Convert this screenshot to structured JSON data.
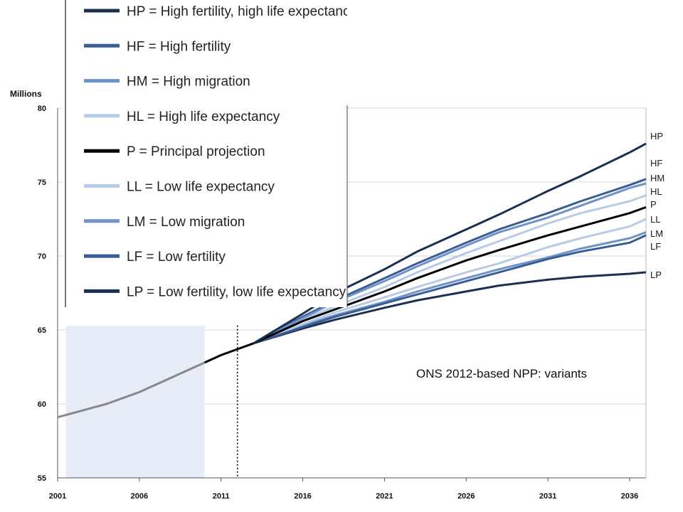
{
  "chart_data": {
    "type": "line",
    "title": "",
    "subtitle": "ONS 2012-based NPP: variants",
    "xlabel": "",
    "ylabel": "Millions",
    "xlim": [
      2001,
      2037
    ],
    "ylim": [
      55,
      80
    ],
    "x_ticks": [
      "2001",
      "2006",
      "2011",
      "2016",
      "2021",
      "2026",
      "2031",
      "2036"
    ],
    "y_ticks": [
      "55",
      "60",
      "65",
      "70",
      "75",
      "80"
    ],
    "grid": true,
    "shaded_region": [
      2001.5,
      2010
    ],
    "projection_start": 2012,
    "colors": {
      "historical_shaded": "#888888",
      "historical": "#000000",
      "principal": "#000000",
      "dark": "#1b2f50",
      "medium_dark": "#3a5c95",
      "medium": "#6f92c9",
      "light": "#b8cbe6",
      "shade_fill": "#e6edf6"
    },
    "historical": {
      "x": [
        2001,
        2002,
        2003,
        2004,
        2005,
        2006,
        2007,
        2008,
        2009,
        2010,
        2011,
        2012,
        2013
      ],
      "y": [
        59.1,
        59.4,
        59.7,
        60.0,
        60.4,
        60.8,
        61.3,
        61.8,
        62.3,
        62.8,
        63.3,
        63.7,
        64.1
      ]
    },
    "projection_x": [
      2013,
      2016,
      2018,
      2021,
      2023,
      2026,
      2028,
      2031,
      2033,
      2036,
      2037
    ],
    "series": [
      {
        "name": "HP = High fertility, high life expectancy",
        "label": "HP",
        "color": "#1b2f50",
        "values": [
          64.1,
          66.1,
          67.5,
          69.1,
          70.3,
          71.8,
          72.8,
          74.4,
          75.4,
          77.0,
          77.6
        ]
      },
      {
        "name": "HF = High fertility",
        "label": "HF",
        "color": "#3a5c95",
        "values": [
          64.1,
          65.9,
          67.0,
          68.5,
          69.5,
          70.9,
          71.8,
          72.9,
          73.7,
          74.8,
          75.2
        ]
      },
      {
        "name": "HM = High migration",
        "label": "HM",
        "color": "#6f92c9",
        "values": [
          64.1,
          65.8,
          66.9,
          68.3,
          69.3,
          70.7,
          71.6,
          72.6,
          73.4,
          74.6,
          74.9
        ]
      },
      {
        "name": "HL = High life expectancy",
        "label": "HL",
        "color": "#b8cbe6",
        "values": [
          64.1,
          65.7,
          66.6,
          67.9,
          68.9,
          70.2,
          71.0,
          72.2,
          72.9,
          73.7,
          74.1
        ]
      },
      {
        "name": "P = Principal projection",
        "label": "P",
        "color": "#000000",
        "values": [
          64.1,
          65.6,
          66.4,
          67.6,
          68.5,
          69.7,
          70.4,
          71.4,
          72.0,
          72.9,
          73.3
        ]
      },
      {
        "name": "LL = Low life expectancy",
        "label": "LL",
        "color": "#b8cbe6",
        "values": [
          64.1,
          65.4,
          66.2,
          67.2,
          67.9,
          68.9,
          69.5,
          70.6,
          71.2,
          72.0,
          72.5
        ]
      },
      {
        "name": "LM = Low migration",
        "label": "LM",
        "color": "#6f92c9",
        "values": [
          64.1,
          65.3,
          66.0,
          66.9,
          67.6,
          68.5,
          69.1,
          69.9,
          70.5,
          71.2,
          71.6
        ]
      },
      {
        "name": "LF = Low fertility",
        "label": "LF",
        "color": "#3a5c95",
        "values": [
          64.1,
          65.2,
          65.9,
          66.8,
          67.4,
          68.3,
          68.9,
          69.8,
          70.3,
          70.9,
          71.4
        ]
      },
      {
        "name": "LP = Low fertility, low life expectancy",
        "label": "LP",
        "color": "#1b2f50",
        "values": [
          64.1,
          65.1,
          65.7,
          66.5,
          67.0,
          67.6,
          68.0,
          68.4,
          68.6,
          68.8,
          68.9
        ]
      }
    ]
  }
}
